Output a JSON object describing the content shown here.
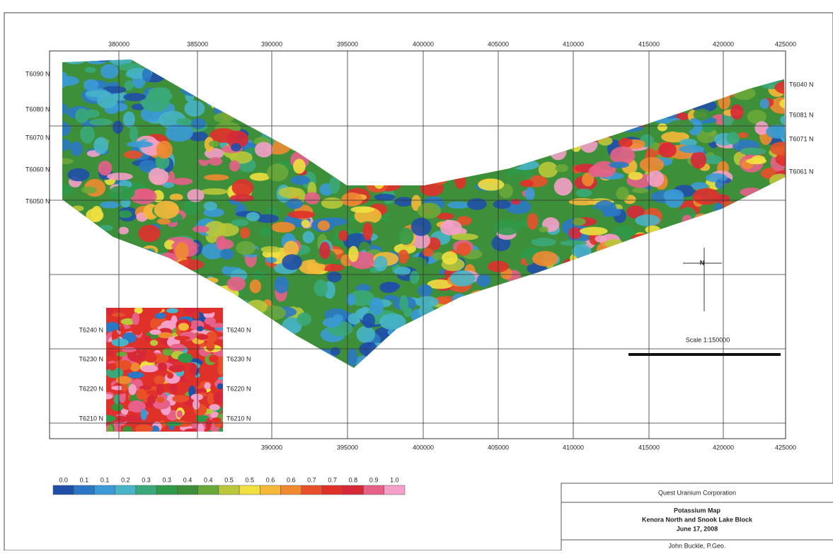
{
  "map": {
    "x_labels_top": [
      "380000",
      "385000",
      "390000",
      "395000",
      "400000",
      "405000",
      "410000",
      "415000",
      "420000",
      "425000"
    ],
    "x_labels_bottom": [
      "390000",
      "395000",
      "400000",
      "405000",
      "410000",
      "415000",
      "420000",
      "425000"
    ],
    "lines_left": [
      "T6090 N",
      "T6080 N",
      "T6070 N",
      "T6060 N",
      "T6050 N"
    ],
    "lines_right": [
      "T6040 N",
      "T6081 N",
      "T6071 N",
      "T6061 N"
    ],
    "inset_lines": [
      "T6240 N",
      "T6230 N",
      "T6220 N",
      "T6210 N"
    ],
    "north": "N",
    "scale": "Scale 1:150000"
  },
  "legend": {
    "labels": [
      "0.0",
      "0.1",
      "0.1",
      "0.2",
      "0.3",
      "0.3",
      "0.4",
      "0.4",
      "0.5",
      "0.5",
      "0.6",
      "0.6",
      "0.7",
      "0.7",
      "0.8",
      "0.9",
      "1.0"
    ],
    "colors": [
      "#1f4fa8",
      "#2a78c4",
      "#3a9ad6",
      "#47b4c8",
      "#3aa878",
      "#2e9a4a",
      "#3e8f3a",
      "#6aa83a",
      "#b8c83a",
      "#f0e040",
      "#f5b838",
      "#f08a30",
      "#e8502a",
      "#e0302a",
      "#d82838",
      "#e66088",
      "#f4a0c8"
    ]
  },
  "title_block": {
    "company": "Quest Uranium Corporation",
    "map_title": "Potassium Map",
    "area": "Kenora North and Snook Lake Block",
    "date": "June 17, 2008",
    "author": "John Buckle, P.Geo."
  }
}
